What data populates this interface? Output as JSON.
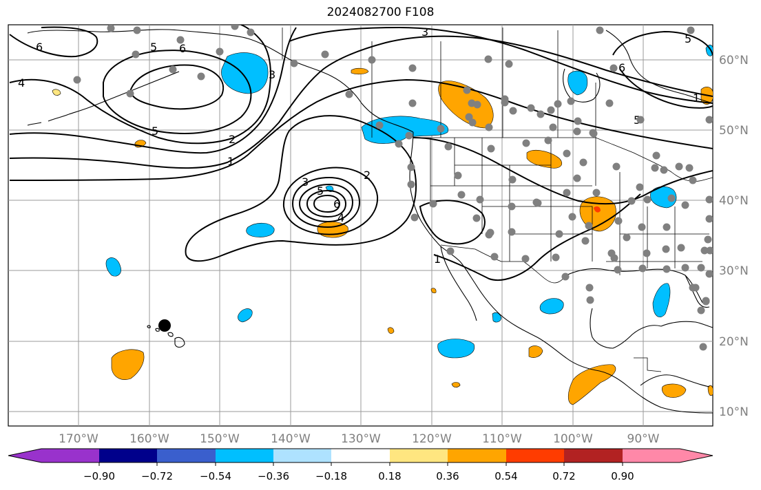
{
  "title": "2024082700 F108",
  "map": {
    "lon_labels": [
      "170°W",
      "160°W",
      "150°W",
      "140°W",
      "130°W",
      "120°W",
      "110°W",
      "100°W",
      "90°W"
    ],
    "lat_labels": [
      "60°N",
      "50°N",
      "40°N",
      "30°N",
      "20°N",
      "10°N"
    ],
    "contour_labels": [
      "6",
      "5",
      "6",
      "4",
      "5",
      "3",
      "2",
      "1",
      "2",
      "3",
      "4",
      "5",
      "6",
      "3",
      "5",
      "6",
      "5",
      "1",
      "1"
    ],
    "anomaly_colors": {
      "strong_negative": "#00bfff",
      "weak_negative": "#aee2ff",
      "weak_positive": "#ffe680",
      "positive": "#ffa500",
      "strong_positive": "#ff3c00"
    },
    "marker_colors": {
      "station": "#808080",
      "highlight": "#000000"
    }
  },
  "colorbar": {
    "tick_labels": [
      "−0.90",
      "−0.72",
      "−0.54",
      "−0.36",
      "−0.18",
      "0.18",
      "0.36",
      "0.54",
      "0.72",
      "0.90"
    ],
    "colors": [
      "#9932cc",
      "#00008b",
      "#3a5fcd",
      "#00bfff",
      "#aee2ff",
      "#ffffff",
      "#ffe680",
      "#ffa500",
      "#ff3c00",
      "#b22222",
      "#ff88a8"
    ]
  }
}
